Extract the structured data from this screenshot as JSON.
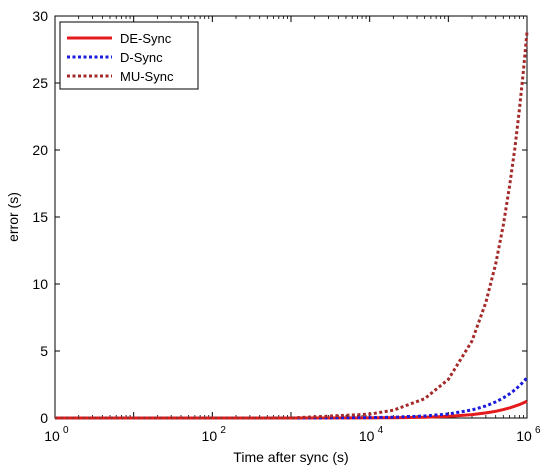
{
  "chart_data": {
    "type": "line",
    "xlabel": "Time after sync (s)",
    "ylabel": "error (s)",
    "xscale": "log",
    "xlim": [
      1,
      1000000
    ],
    "ylim": [
      0,
      30
    ],
    "grid": false,
    "legend_position": "top-left",
    "x_ticks": [
      {
        "value": 1,
        "base": "10",
        "exp": "0"
      },
      {
        "value": 100,
        "base": "10",
        "exp": "2"
      },
      {
        "value": 10000,
        "base": "10",
        "exp": "4"
      },
      {
        "value": 1000000,
        "base": "10",
        "exp": "6"
      }
    ],
    "y_ticks": [
      "0",
      "5",
      "10",
      "15",
      "20",
      "25",
      "30"
    ],
    "x": [
      1,
      10,
      100,
      1000,
      10000,
      20000,
      50000,
      100000,
      200000,
      300000,
      400000,
      500000,
      600000,
      700000,
      800000,
      900000,
      1000000
    ],
    "series": [
      {
        "name": "DE-Sync",
        "color": "#e41a1c",
        "style": "solid",
        "values": [
          0,
          0,
          0,
          0,
          0.01,
          0.02,
          0.06,
          0.12,
          0.25,
          0.38,
          0.5,
          0.63,
          0.75,
          0.88,
          1.0,
          1.13,
          1.25
        ]
      },
      {
        "name": "D-Sync",
        "color": "#1a1adc",
        "style": "dotted",
        "values": [
          0,
          0,
          0,
          0,
          0.03,
          0.06,
          0.15,
          0.3,
          0.6,
          0.9,
          1.2,
          1.5,
          1.8,
          2.1,
          2.4,
          2.7,
          3.0
        ]
      },
      {
        "name": "MU-Sync",
        "color": "#a52a2a",
        "style": "dotted",
        "values": [
          0,
          0,
          0,
          0,
          0.29,
          0.58,
          1.44,
          2.88,
          5.75,
          8.63,
          11.5,
          14.4,
          17.3,
          20.1,
          23.0,
          25.9,
          28.8
        ]
      }
    ]
  }
}
